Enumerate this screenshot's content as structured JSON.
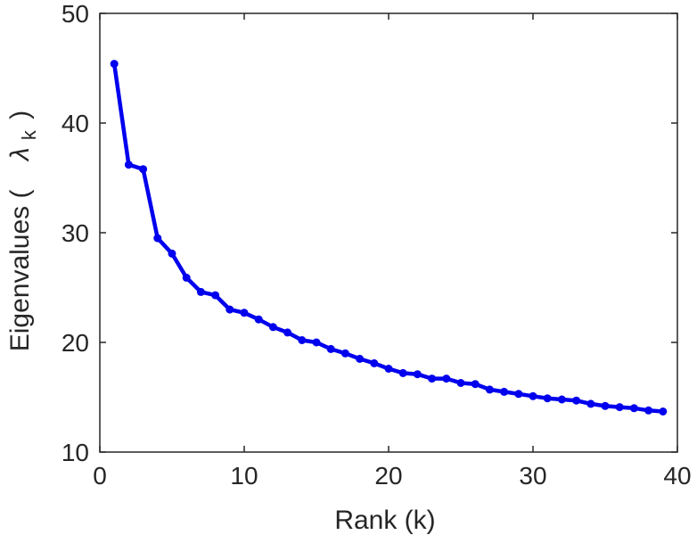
{
  "chart_data": {
    "type": "line",
    "xlabel": "Rank (k)",
    "ylabel": {
      "prefix": "Eigenvalues (",
      "symbol": "λ",
      "subscript": "k",
      "suffix": ")"
    },
    "xlim": [
      0,
      40
    ],
    "ylim": [
      10,
      50
    ],
    "xticks": [
      0,
      10,
      20,
      30,
      40
    ],
    "yticks": [
      10,
      20,
      30,
      40,
      50
    ],
    "grid": false,
    "series": [
      {
        "color": "#0000ee",
        "marker": "circle",
        "x": [
          1,
          2,
          3,
          4,
          5,
          6,
          7,
          8,
          9,
          10,
          11,
          12,
          13,
          14,
          15,
          16,
          17,
          18,
          19,
          20,
          21,
          22,
          23,
          24,
          25,
          26,
          27,
          28,
          29,
          30,
          31,
          32,
          33,
          34,
          35,
          36,
          37,
          38,
          39
        ],
        "y": [
          45.4,
          36.2,
          35.8,
          29.5,
          28.1,
          25.9,
          24.6,
          24.3,
          23.0,
          22.7,
          22.1,
          21.4,
          20.9,
          20.2,
          20.0,
          19.4,
          19.0,
          18.5,
          18.1,
          17.6,
          17.2,
          17.1,
          16.7,
          16.7,
          16.3,
          16.2,
          15.7,
          15.5,
          15.3,
          15.1,
          14.9,
          14.8,
          14.7,
          14.4,
          14.2,
          14.1,
          14.0,
          13.8,
          13.7
        ]
      }
    ]
  }
}
